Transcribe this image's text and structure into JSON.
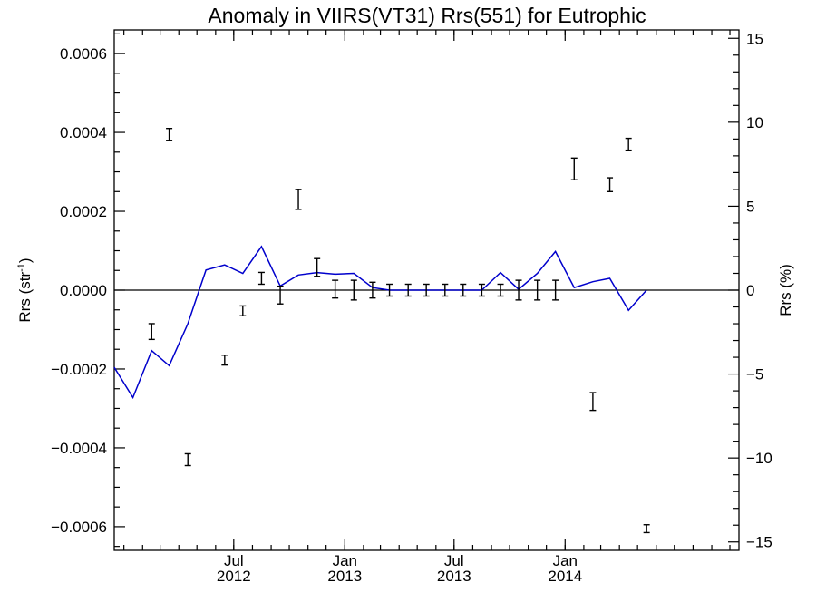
{
  "chart_data": {
    "type": "line",
    "title": "Anomaly in VIIRS(VT31) Rrs(551) for Eutrophic",
    "ylabel_left": "Rrs (str",
    "ylabel_left_sup": "-1",
    "ylabel_left_close": ")",
    "ylabel_right": "Rrs (%)",
    "x_range": [
      "2011-12-16",
      "2014-10-16"
    ],
    "ylim_left": [
      -0.00066,
      0.00066
    ],
    "ylim_right": [
      -15.5,
      15.5
    ],
    "x_ticks": [
      {
        "date": "2012-07-01",
        "month": "Jul",
        "year": "2012"
      },
      {
        "date": "2013-01-01",
        "month": "Jan",
        "year": "2013"
      },
      {
        "date": "2013-07-01",
        "month": "Jul",
        "year": "2013"
      },
      {
        "date": "2014-01-01",
        "month": "Jan",
        "year": "2014"
      }
    ],
    "y_ticks_left": [
      {
        "value": 0.0006,
        "label": "0.0006"
      },
      {
        "value": 0.0004,
        "label": "0.0004"
      },
      {
        "value": 0.0002,
        "label": "0.0002"
      },
      {
        "value": 0.0,
        "label": "0.0000"
      },
      {
        "value": -0.0002,
        "label": "−0.0002"
      },
      {
        "value": -0.0004,
        "label": "−0.0004"
      },
      {
        "value": -0.0006,
        "label": "−0.0006"
      }
    ],
    "y_ticks_right": [
      {
        "value": 15,
        "label": "15"
      },
      {
        "value": 10,
        "label": "10"
      },
      {
        "value": 5,
        "label": "5"
      },
      {
        "value": 0,
        "label": "0"
      },
      {
        "value": -5,
        "label": "−5"
      },
      {
        "value": -10,
        "label": "−10"
      },
      {
        "value": -15,
        "label": "−15"
      }
    ],
    "zero_line": true,
    "series": [
      {
        "kind": "errorbar",
        "axis": "left",
        "color": "#000000",
        "points": [
          {
            "x": "2012-02-16",
            "low": -0.000125,
            "high": -8.5e-05
          },
          {
            "x": "2012-03-16",
            "low": 0.00038,
            "high": 0.00041
          },
          {
            "x": "2012-04-16",
            "low": -0.000445,
            "high": -0.000415
          },
          {
            "x": "2012-06-16",
            "low": -0.00019,
            "high": -0.000165
          },
          {
            "x": "2012-07-16",
            "low": -6.5e-05,
            "high": -4e-05
          },
          {
            "x": "2012-08-16",
            "low": 1.5e-05,
            "high": 4.5e-05
          },
          {
            "x": "2012-09-16",
            "low": -3.5e-05,
            "high": 1e-05
          },
          {
            "x": "2012-10-16",
            "low": 0.000205,
            "high": 0.000255
          },
          {
            "x": "2012-11-16",
            "low": 3.5e-05,
            "high": 8e-05
          },
          {
            "x": "2012-12-16",
            "low": -2e-05,
            "high": 2.5e-05
          },
          {
            "x": "2013-01-16",
            "low": -2.5e-05,
            "high": 2.5e-05
          },
          {
            "x": "2013-02-16",
            "low": -2e-05,
            "high": 2e-05
          },
          {
            "x": "2013-03-16",
            "low": -1.5e-05,
            "high": 1.5e-05
          },
          {
            "x": "2013-04-16",
            "low": -1.5e-05,
            "high": 1.5e-05
          },
          {
            "x": "2013-05-16",
            "low": -1.5e-05,
            "high": 1.5e-05
          },
          {
            "x": "2013-06-16",
            "low": -1.5e-05,
            "high": 1.5e-05
          },
          {
            "x": "2013-07-16",
            "low": -1.5e-05,
            "high": 1.5e-05
          },
          {
            "x": "2013-08-16",
            "low": -1.5e-05,
            "high": 1.5e-05
          },
          {
            "x": "2013-09-16",
            "low": -1.5e-05,
            "high": 1.5e-05
          },
          {
            "x": "2013-10-16",
            "low": -2.5e-05,
            "high": 2.5e-05
          },
          {
            "x": "2013-11-16",
            "low": -2.5e-05,
            "high": 2.5e-05
          },
          {
            "x": "2013-12-16",
            "low": -2.5e-05,
            "high": 2.5e-05
          },
          {
            "x": "2014-01-16",
            "low": 0.00028,
            "high": 0.000335
          },
          {
            "x": "2014-02-16",
            "low": -0.000305,
            "high": -0.00026
          },
          {
            "x": "2014-03-16",
            "low": 0.00025,
            "high": 0.000285
          },
          {
            "x": "2014-04-16",
            "low": 0.000355,
            "high": 0.000385
          },
          {
            "x": "2014-05-16",
            "low": -0.000615,
            "high": -0.000595
          }
        ]
      },
      {
        "kind": "line",
        "axis": "right",
        "color": "#0000cc",
        "points": [
          {
            "x": "2011-12-16",
            "y": -4.6
          },
          {
            "x": "2012-01-16",
            "y": -6.4
          },
          {
            "x": "2012-02-16",
            "y": -3.6
          },
          {
            "x": "2012-03-16",
            "y": -4.5
          },
          {
            "x": "2012-04-16",
            "y": -2.0
          },
          {
            "x": "2012-05-16",
            "y": 1.2
          },
          {
            "x": "2012-06-16",
            "y": 1.5
          },
          {
            "x": "2012-07-16",
            "y": 1.0
          },
          {
            "x": "2012-08-16",
            "y": 2.6
          },
          {
            "x": "2012-09-16",
            "y": 0.25
          },
          {
            "x": "2012-10-16",
            "y": 0.9
          },
          {
            "x": "2012-11-16",
            "y": 1.05
          },
          {
            "x": "2012-12-16",
            "y": 0.95
          },
          {
            "x": "2013-01-16",
            "y": 1.0
          },
          {
            "x": "2013-02-16",
            "y": 0.15
          },
          {
            "x": "2013-03-16",
            "y": 0.0
          },
          {
            "x": "2013-04-16",
            "y": 0.0
          },
          {
            "x": "2013-05-16",
            "y": 0.0
          },
          {
            "x": "2013-06-16",
            "y": 0.0
          },
          {
            "x": "2013-07-16",
            "y": 0.0
          },
          {
            "x": "2013-08-16",
            "y": 0.0
          },
          {
            "x": "2013-09-16",
            "y": 1.05
          },
          {
            "x": "2013-10-16",
            "y": 0.05
          },
          {
            "x": "2013-11-16",
            "y": 1.0
          },
          {
            "x": "2013-12-16",
            "y": 2.3
          },
          {
            "x": "2014-01-16",
            "y": 0.15
          },
          {
            "x": "2014-02-16",
            "y": 0.5
          },
          {
            "x": "2014-03-16",
            "y": 0.7
          },
          {
            "x": "2014-04-16",
            "y": -1.2
          },
          {
            "x": "2014-05-16",
            "y": 0.0
          }
        ]
      }
    ]
  }
}
